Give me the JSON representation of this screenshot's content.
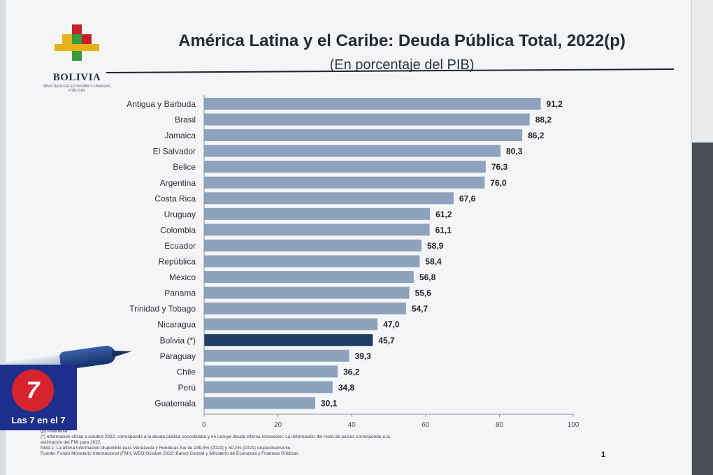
{
  "logo": {
    "name": "BOLIVIA",
    "ministry": "MINISTERIO DE ECONOMÍA Y FINANZAS PÚBLICAS"
  },
  "page": {
    "number": "1"
  },
  "badge": {
    "logo_text": "7",
    "label": "Las 7 en el 7"
  },
  "footnotes": [
    "(p) Preliminar",
    "(*) Información oficial a octubre 2022, corresponde a la deuda pública consolidada y no incluye deuda interna intrasector. La información del resto de países corresponde a la",
    "estimación del FMI para 2022.",
    "Nota 1: La última información disponible para Venezuela y Honduras fue de 249,5% (2021) y 50,2% (2021) respectivamente",
    "Fuente: Fondo Monetario Internacional (FMI), WEO Octubre 2022; Banco Central y Ministerio de Economía y Finanzas Públicas"
  ],
  "colors": {
    "bar": "#8ea2bd",
    "highlight": "#1f3d63",
    "axis": "#8a8f96"
  },
  "chart_data": {
    "type": "bar",
    "orientation": "horizontal",
    "title": "América Latina y el Caribe: Deuda Pública Total, 2022(p)",
    "subtitle": "(En porcentaje del PIB)",
    "categories": [
      "Antigua y Barbuda",
      "Brasil",
      "Jamaica",
      "El Salvador",
      "Belice",
      "Argentina",
      "Costa Rica",
      "Uruguay",
      "Colombia",
      "Ecuador",
      "República",
      "Mexico",
      "Panamá",
      "Trinidad y Tobago",
      "Nicaragua",
      "Bolivia (*)",
      "Paraguay",
      "Chile",
      "Perú",
      "Guatemala"
    ],
    "values": [
      91.2,
      88.2,
      86.2,
      80.3,
      76.3,
      76.0,
      67.6,
      61.2,
      61.1,
      58.9,
      58.4,
      56.8,
      55.6,
      54.7,
      47.0,
      45.7,
      39.3,
      36.2,
      34.8,
      30.1
    ],
    "value_labels": [
      "91,2",
      "88,2",
      "86,2",
      "80,3",
      "76,3",
      "76,0",
      "67,6",
      "61,2",
      "61,1",
      "58,9",
      "58,4",
      "56,8",
      "55,6",
      "54,7",
      "47,0",
      "45,7",
      "39,3",
      "36,2",
      "34,8",
      "30,1"
    ],
    "highlight_category": "Bolivia (*)",
    "xticks": [
      "0",
      "20",
      "40",
      "60",
      "80",
      "100"
    ],
    "xlim": [
      0,
      100
    ],
    "grid": false,
    "legend": "none"
  }
}
